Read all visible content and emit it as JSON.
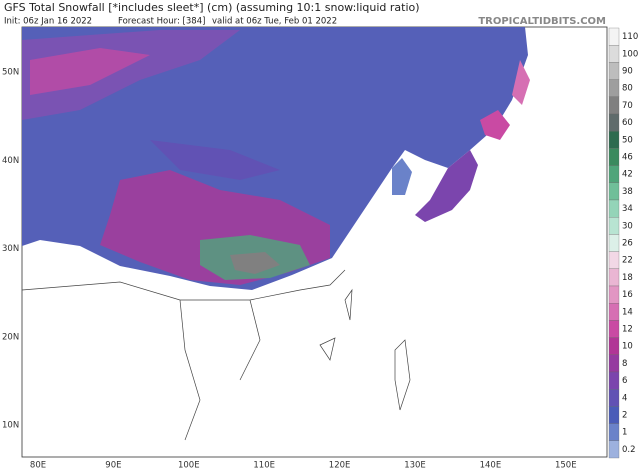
{
  "header": {
    "title": "GFS Total Snowfall [*includes sleet*] (cm) (assuming 10:1 snow:liquid ratio)",
    "init": "Init: 06z Jan 16 2022",
    "forecast_hour": "Forecast Hour: [384]",
    "valid": "valid at 06z Tue, Feb 01 2022",
    "site": "TROPICALTIDBITS.COM"
  },
  "map": {
    "lat_labels": [
      "50N",
      "40N",
      "30N",
      "20N",
      "10N"
    ],
    "lon_labels": [
      "80E",
      "90E",
      "100E",
      "110E",
      "120E",
      "130E",
      "140E",
      "150E"
    ]
  },
  "colorbar": {
    "levels": [
      110,
      100,
      90,
      80,
      70,
      60,
      50,
      46,
      42,
      38,
      34,
      30,
      26,
      22,
      18,
      16,
      14,
      12,
      10,
      8,
      6,
      4,
      2,
      1,
      0.2
    ],
    "colors": [
      "#f4f4f4",
      "#dcdcdc",
      "#bdbdbd",
      "#9e9e9e",
      "#808080",
      "#5f6b6b",
      "#2d6b4f",
      "#3a8a5e",
      "#4fa57a",
      "#70bf99",
      "#94d4b8",
      "#b8e4d2",
      "#dcf0e8",
      "#f2d8e6",
      "#eab6d3",
      "#e296c3",
      "#d66fb3",
      "#c94aa3",
      "#b13596",
      "#953aa0",
      "#7b45ad",
      "#6152b4",
      "#4a5cb8",
      "#6a82c9",
      "#9db1de"
    ]
  }
}
